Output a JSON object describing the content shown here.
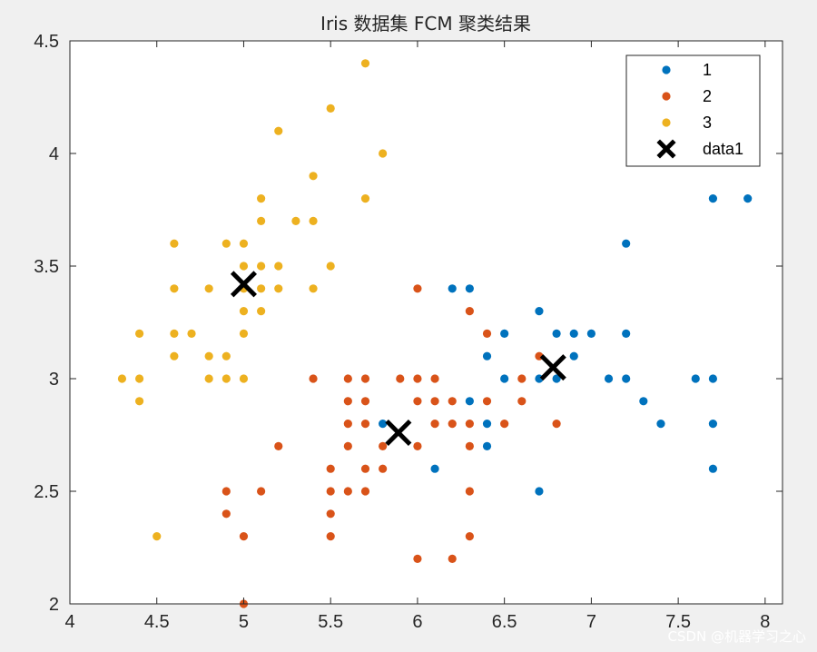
{
  "chart_data": {
    "type": "scatter",
    "title": "Iris 数据集 FCM 聚类结果",
    "xlabel": "",
    "ylabel": "",
    "xlim": [
      4,
      8.1
    ],
    "ylim": [
      2,
      4.5
    ],
    "xticks": [
      4,
      4.5,
      5,
      5.5,
      6,
      6.5,
      7,
      7.5,
      8
    ],
    "yticks": [
      2,
      2.5,
      3,
      3.5,
      4,
      4.5
    ],
    "xtick_labels": [
      "4",
      "4.5",
      "5",
      "5.5",
      "6",
      "6.5",
      "7",
      "7.5",
      "8"
    ],
    "ytick_labels": [
      "2",
      "2.5",
      "3",
      "3.5",
      "4",
      "4.5"
    ],
    "grid": false,
    "legend_position": "top-right",
    "series": [
      {
        "name": "1",
        "color": "#0072BD",
        "marker": "circle",
        "points": [
          [
            7.9,
            3.8
          ],
          [
            7.7,
            3.8
          ],
          [
            7.2,
            3.6
          ],
          [
            6.2,
            3.4
          ],
          [
            6.3,
            3.4
          ],
          [
            6.7,
            3.3
          ],
          [
            6.5,
            3.2
          ],
          [
            6.8,
            3.2
          ],
          [
            6.9,
            3.2
          ],
          [
            7.0,
            3.2
          ],
          [
            7.2,
            3.2
          ],
          [
            6.4,
            3.1
          ],
          [
            6.9,
            3.1
          ],
          [
            6.5,
            3.0
          ],
          [
            6.7,
            3.0
          ],
          [
            6.8,
            3.0
          ],
          [
            7.1,
            3.0
          ],
          [
            7.2,
            3.0
          ],
          [
            7.6,
            3.0
          ],
          [
            7.7,
            3.0
          ],
          [
            6.3,
            2.9
          ],
          [
            7.3,
            2.9
          ],
          [
            5.8,
            2.8
          ],
          [
            6.4,
            2.8
          ],
          [
            7.4,
            2.8
          ],
          [
            7.7,
            2.8
          ],
          [
            6.4,
            2.7
          ],
          [
            6.1,
            2.6
          ],
          [
            7.7,
            2.6
          ],
          [
            6.7,
            2.5
          ]
        ]
      },
      {
        "name": "2",
        "color": "#D95319",
        "marker": "circle",
        "points": [
          [
            6.0,
            3.4
          ],
          [
            6.3,
            3.3
          ],
          [
            6.4,
            3.2
          ],
          [
            6.7,
            3.1
          ],
          [
            5.4,
            3.0
          ],
          [
            5.6,
            3.0
          ],
          [
            5.7,
            3.0
          ],
          [
            5.9,
            3.0
          ],
          [
            6.0,
            3.0
          ],
          [
            6.1,
            3.0
          ],
          [
            6.6,
            3.0
          ],
          [
            5.6,
            2.9
          ],
          [
            5.7,
            2.9
          ],
          [
            6.0,
            2.9
          ],
          [
            6.1,
            2.9
          ],
          [
            6.2,
            2.9
          ],
          [
            6.4,
            2.9
          ],
          [
            6.6,
            2.9
          ],
          [
            5.6,
            2.8
          ],
          [
            5.7,
            2.8
          ],
          [
            6.1,
            2.8
          ],
          [
            6.2,
            2.8
          ],
          [
            6.3,
            2.8
          ],
          [
            6.5,
            2.8
          ],
          [
            6.8,
            2.8
          ],
          [
            5.2,
            2.7
          ],
          [
            5.6,
            2.7
          ],
          [
            5.8,
            2.7
          ],
          [
            6.0,
            2.7
          ],
          [
            6.3,
            2.7
          ],
          [
            5.5,
            2.6
          ],
          [
            5.7,
            2.6
          ],
          [
            5.8,
            2.6
          ],
          [
            4.9,
            2.5
          ],
          [
            5.1,
            2.5
          ],
          [
            5.5,
            2.5
          ],
          [
            5.6,
            2.5
          ],
          [
            5.7,
            2.5
          ],
          [
            6.3,
            2.5
          ],
          [
            4.9,
            2.4
          ],
          [
            5.5,
            2.4
          ],
          [
            5.0,
            2.3
          ],
          [
            5.5,
            2.3
          ],
          [
            6.3,
            2.3
          ],
          [
            6.0,
            2.2
          ],
          [
            6.2,
            2.2
          ],
          [
            5.0,
            2.0
          ]
        ]
      },
      {
        "name": "3",
        "color": "#EDB120",
        "marker": "circle",
        "points": [
          [
            5.7,
            4.4
          ],
          [
            5.5,
            4.2
          ],
          [
            5.2,
            4.1
          ],
          [
            5.8,
            4.0
          ],
          [
            5.4,
            3.9
          ],
          [
            5.1,
            3.8
          ],
          [
            5.7,
            3.8
          ],
          [
            5.1,
            3.7
          ],
          [
            5.3,
            3.7
          ],
          [
            5.4,
            3.7
          ],
          [
            4.6,
            3.6
          ],
          [
            4.9,
            3.6
          ],
          [
            5.0,
            3.6
          ],
          [
            5.0,
            3.5
          ],
          [
            5.1,
            3.5
          ],
          [
            5.2,
            3.5
          ],
          [
            5.5,
            3.5
          ],
          [
            4.6,
            3.4
          ],
          [
            4.8,
            3.4
          ],
          [
            5.0,
            3.4
          ],
          [
            5.1,
            3.4
          ],
          [
            5.2,
            3.4
          ],
          [
            5.4,
            3.4
          ],
          [
            5.0,
            3.3
          ],
          [
            5.1,
            3.3
          ],
          [
            4.4,
            3.2
          ],
          [
            4.6,
            3.2
          ],
          [
            4.7,
            3.2
          ],
          [
            5.0,
            3.2
          ],
          [
            4.6,
            3.1
          ],
          [
            4.8,
            3.1
          ],
          [
            4.9,
            3.1
          ],
          [
            4.3,
            3.0
          ],
          [
            4.4,
            3.0
          ],
          [
            4.8,
            3.0
          ],
          [
            4.9,
            3.0
          ],
          [
            5.0,
            3.0
          ],
          [
            4.4,
            2.9
          ],
          [
            4.5,
            2.3
          ]
        ]
      },
      {
        "name": "data1",
        "color": "#000000",
        "marker": "x",
        "points": [
          [
            5.0,
            3.42
          ],
          [
            5.89,
            2.76
          ],
          [
            6.78,
            3.05
          ]
        ]
      }
    ]
  },
  "watermark": "CSDN @机器学习之心"
}
